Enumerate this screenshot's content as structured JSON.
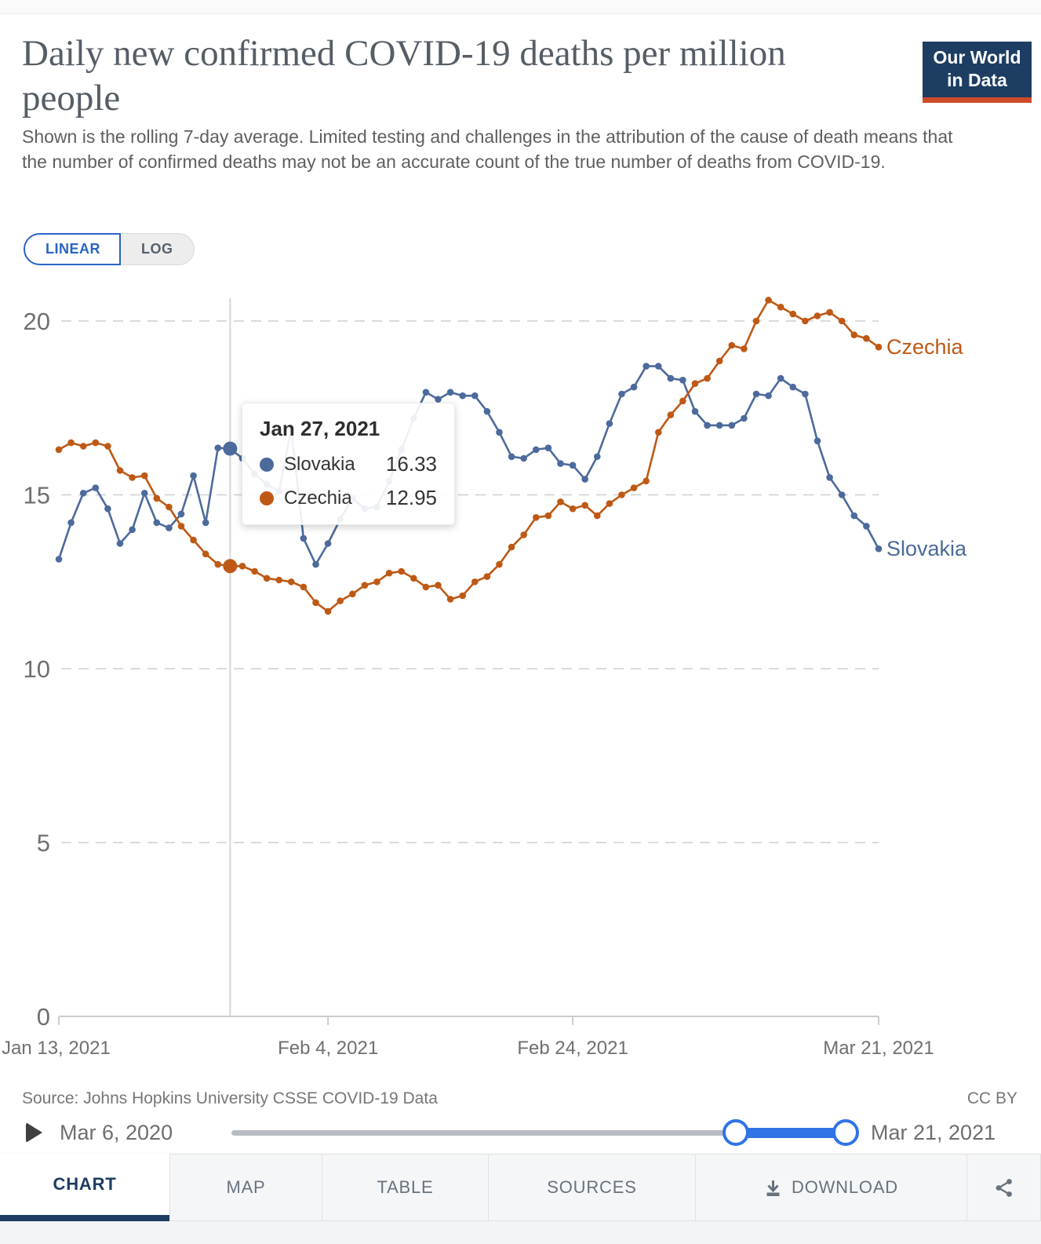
{
  "header": {
    "title": "Daily new confirmed COVID-19 deaths per million people",
    "subtitle": "Shown is the rolling 7-day average. Limited testing and challenges in the attribution of the cause of death means that the number of confirmed deaths may not be an accurate count of the true number of deaths from COVID-19.",
    "logo": {
      "line1": "Our World",
      "line2": "in Data"
    }
  },
  "scale_toggle": {
    "linear_label": "LINEAR",
    "log_label": "LOG",
    "selected": "LINEAR"
  },
  "chart_data": {
    "type": "line",
    "title": "Daily new confirmed COVID-19 deaths per million people",
    "xlabel": "",
    "ylabel": "",
    "ylim": [
      0,
      20
    ],
    "y_ticks": [
      0,
      5,
      10,
      15,
      20
    ],
    "grid": "dashed horizontal gridlines",
    "legend_position": "line-end labels at right",
    "x_tick_labels": [
      "Jan 13, 2021",
      "Feb 4, 2021",
      "Feb 24, 2021",
      "Mar 21, 2021"
    ],
    "x_tick_day_index": [
      0,
      22,
      42,
      67
    ],
    "n_points": 68,
    "x_unit": "daily, Jan 13 2021 through Mar 21 2021",
    "series": [
      {
        "name": "Slovakia",
        "color": "#4C6A9C",
        "values": [
          13.15,
          14.2,
          15.05,
          15.2,
          14.6,
          13.6,
          14.0,
          15.05,
          14.2,
          14.05,
          14.45,
          15.55,
          14.2,
          16.35,
          16.33,
          16.05,
          15.6,
          15.3,
          15.1,
          16.9,
          13.75,
          13.0,
          13.6,
          14.3,
          14.9,
          14.6,
          14.65,
          15.4,
          16.3,
          17.2,
          17.95,
          17.75,
          17.95,
          17.85,
          17.85,
          17.4,
          16.8,
          16.1,
          16.05,
          16.3,
          16.35,
          15.9,
          15.85,
          15.45,
          16.1,
          17.05,
          17.9,
          18.1,
          18.7,
          18.7,
          18.35,
          18.3,
          17.4,
          17.0,
          17.0,
          17.0,
          17.2,
          17.9,
          17.85,
          18.35,
          18.1,
          17.9,
          16.55,
          15.5,
          15.0,
          14.4,
          14.1,
          13.45
        ]
      },
      {
        "name": "Czechia",
        "color": "#BE5915",
        "values": [
          16.3,
          16.5,
          16.4,
          16.5,
          16.4,
          15.7,
          15.5,
          15.55,
          14.9,
          14.65,
          14.1,
          13.7,
          13.3,
          13.0,
          12.95,
          12.95,
          12.8,
          12.6,
          12.55,
          12.5,
          12.35,
          11.9,
          11.65,
          11.95,
          12.15,
          12.4,
          12.5,
          12.75,
          12.8,
          12.6,
          12.35,
          12.4,
          12.0,
          12.1,
          12.5,
          12.65,
          13.0,
          13.5,
          13.85,
          14.35,
          14.4,
          14.8,
          14.6,
          14.7,
          14.4,
          14.75,
          15.0,
          15.2,
          15.4,
          16.8,
          17.3,
          17.7,
          18.2,
          18.35,
          18.85,
          19.3,
          19.2,
          20.0,
          20.6,
          20.4,
          20.2,
          20.0,
          20.15,
          20.25,
          20.0,
          19.6,
          19.5,
          19.25
        ]
      }
    ],
    "hover": {
      "day_index": 14,
      "date_label": "Jan 27, 2021",
      "rows": [
        {
          "name": "Slovakia",
          "value": "16.33"
        },
        {
          "name": "Czechia",
          "value": "12.95"
        }
      ]
    }
  },
  "footer": {
    "source": "Source: Johns Hopkins University CSSE COVID-19 Data",
    "license": "CC BY",
    "timeline": {
      "start_label": "Mar 6, 2020",
      "end_label": "Mar 21, 2021"
    },
    "tabs": [
      {
        "label": "CHART",
        "active": true
      },
      {
        "label": "MAP",
        "active": false
      },
      {
        "label": "TABLE",
        "active": false
      },
      {
        "label": "SOURCES",
        "active": false
      },
      {
        "label": "DOWNLOAD",
        "active": false
      }
    ]
  },
  "colors": {
    "brand_navy": "#1d3d63",
    "logo_red": "#ce4b2a",
    "toggle_blue": "#2a63c5",
    "slider_blue": "#2f73e6",
    "axis_text": "#6f6f6f",
    "gridline": "#cfcfcf"
  }
}
